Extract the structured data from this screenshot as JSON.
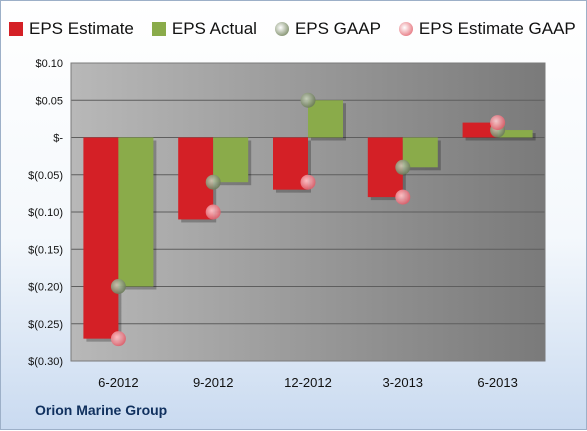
{
  "company_name": "Orion Marine Group",
  "colors": {
    "eps_estimate": "#d42026",
    "eps_actual": "#8aab4a",
    "eps_gaap": "#7f8f6a",
    "eps_estimate_gaap": "#e9868e",
    "plot_bg": "#8a8a8a"
  },
  "legend": [
    {
      "label": "EPS Estimate",
      "shape": "square",
      "color": "#d42026"
    },
    {
      "label": "EPS Actual",
      "shape": "square",
      "color": "#8aab4a"
    },
    {
      "label": "EPS GAAP",
      "shape": "circle",
      "color": "#8e9c7c"
    },
    {
      "label": "EPS Estimate GAAP",
      "shape": "circle",
      "color": "#e9868e"
    }
  ],
  "chart_data": {
    "type": "bar",
    "categories": [
      "6-2012",
      "9-2012",
      "12-2012",
      "3-2013",
      "6-2013"
    ],
    "series": [
      {
        "name": "EPS Estimate",
        "kind": "bar",
        "values": [
          -0.27,
          -0.11,
          -0.07,
          -0.08,
          0.02
        ]
      },
      {
        "name": "EPS Actual",
        "kind": "bar",
        "values": [
          -0.2,
          -0.06,
          0.05,
          -0.04,
          0.01
        ]
      },
      {
        "name": "EPS GAAP",
        "kind": "marker",
        "values": [
          -0.2,
          -0.06,
          0.05,
          -0.04,
          0.01
        ]
      },
      {
        "name": "EPS Estimate GAAP",
        "kind": "marker",
        "values": [
          -0.27,
          -0.1,
          -0.06,
          -0.08,
          0.02
        ]
      }
    ],
    "ylim": [
      -0.3,
      0.1
    ],
    "yticks": [
      0.1,
      0.05,
      0.0,
      -0.05,
      -0.1,
      -0.15,
      -0.2,
      -0.25,
      -0.3
    ],
    "ytick_labels": [
      "$0.10",
      "$0.05",
      "$-",
      "$(0.05)",
      "$(0.10)",
      "$(0.15)",
      "$(0.20)",
      "$(0.25)",
      "$(0.30)"
    ],
    "grid": true,
    "legend_position": "top"
  }
}
